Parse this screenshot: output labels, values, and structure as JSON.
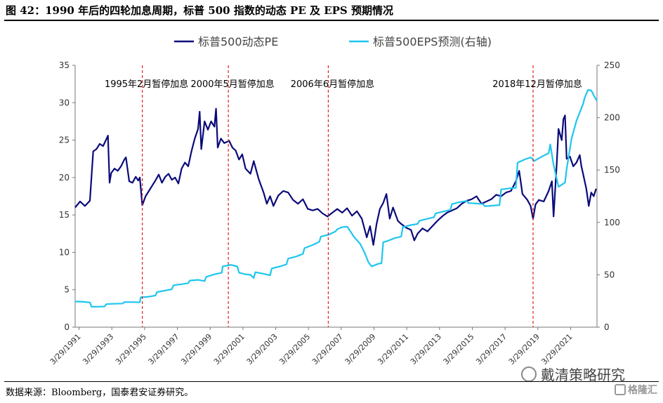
{
  "title": "图 42：1990 年后的四轮加息周期，标普 500 指数的动态 PE 及 EPS 预期情况",
  "source": "数据来源：Bloomberg，国泰君安证券研究。",
  "watermark": "戴清策略研究",
  "brand": "格隆汇",
  "colors": {
    "pe": "#0a0a7a",
    "eps": "#1ec6ee",
    "marker": "#e02020"
  },
  "chart_data": {
    "type": "line",
    "x_tick_labels": [
      "3/29/1991",
      "3/29/1993",
      "3/29/1995",
      "3/29/1997",
      "3/29/1999",
      "3/29/2001",
      "3/29/2003",
      "3/29/2005",
      "3/29/2007",
      "3/29/2009",
      "3/29/2011",
      "3/29/2013",
      "3/29/2015",
      "3/29/2017",
      "3/29/2019",
      "3/29/2021"
    ],
    "y_left": {
      "min": 0,
      "max": 35,
      "ticks": [
        0,
        5,
        10,
        15,
        20,
        25,
        30,
        35
      ]
    },
    "y_right": {
      "min": 0,
      "max": 250,
      "ticks": [
        0,
        50,
        100,
        150,
        200,
        250
      ]
    },
    "legend_position": "top",
    "series": [
      {
        "name": "标普500动态PE",
        "axis": "left",
        "points": [
          [
            1991.0,
            16
          ],
          [
            1991.3,
            16.8
          ],
          [
            1991.6,
            16.2
          ],
          [
            1991.9,
            16.9
          ],
          [
            1992.1,
            23.5
          ],
          [
            1992.3,
            23.8
          ],
          [
            1992.5,
            24.5
          ],
          [
            1992.7,
            24.2
          ],
          [
            1992.9,
            25.1
          ],
          [
            1993.0,
            25.6
          ],
          [
            1993.1,
            19.3
          ],
          [
            1993.2,
            20.6
          ],
          [
            1993.4,
            21.2
          ],
          [
            1993.6,
            20.9
          ],
          [
            1993.8,
            21.5
          ],
          [
            1994.0,
            22.4
          ],
          [
            1994.1,
            22.7
          ],
          [
            1994.3,
            19.5
          ],
          [
            1994.5,
            19.3
          ],
          [
            1994.7,
            20.1
          ],
          [
            1994.85,
            19.6
          ],
          [
            1994.95,
            20.0
          ],
          [
            1995.1,
            16.3
          ],
          [
            1995.3,
            17.5
          ],
          [
            1995.5,
            18.2
          ],
          [
            1995.7,
            18.9
          ],
          [
            1995.9,
            19.6
          ],
          [
            1996.1,
            20.4
          ],
          [
            1996.3,
            19.3
          ],
          [
            1996.5,
            20.1
          ],
          [
            1996.7,
            20.5
          ],
          [
            1996.9,
            19.7
          ],
          [
            1997.1,
            20.0
          ],
          [
            1997.3,
            19.2
          ],
          [
            1997.5,
            21.2
          ],
          [
            1997.7,
            22.0
          ],
          [
            1997.9,
            21.5
          ],
          [
            1998.1,
            23.5
          ],
          [
            1998.3,
            25.2
          ],
          [
            1998.5,
            26.5
          ],
          [
            1998.6,
            28.8
          ],
          [
            1998.7,
            23.8
          ],
          [
            1998.9,
            27.5
          ],
          [
            1999.1,
            26.4
          ],
          [
            1999.3,
            27.5
          ],
          [
            1999.5,
            26.8
          ],
          [
            1999.6,
            29.2
          ],
          [
            1999.7,
            24.0
          ],
          [
            1999.9,
            25.2
          ],
          [
            2000.1,
            24.6
          ],
          [
            2000.4,
            24.9
          ],
          [
            2000.6,
            24.0
          ],
          [
            2000.8,
            23.6
          ],
          [
            2001.0,
            22.4
          ],
          [
            2001.2,
            23.1
          ],
          [
            2001.4,
            21.2
          ],
          [
            2001.7,
            20.5
          ],
          [
            2001.9,
            22.2
          ],
          [
            2002.2,
            19.8
          ],
          [
            2002.5,
            18.0
          ],
          [
            2002.7,
            16.5
          ],
          [
            2002.9,
            17.5
          ],
          [
            2003.1,
            16.2
          ],
          [
            2003.4,
            17.6
          ],
          [
            2003.7,
            18.2
          ],
          [
            2004.0,
            18.0
          ],
          [
            2004.3,
            17.0
          ],
          [
            2004.6,
            16.5
          ],
          [
            2004.9,
            17.1
          ],
          [
            2005.2,
            15.8
          ],
          [
            2005.5,
            15.6
          ],
          [
            2005.8,
            15.8
          ],
          [
            2006.1,
            15.2
          ],
          [
            2006.4,
            14.8
          ],
          [
            2006.7,
            15.3
          ],
          [
            2007.0,
            15.8
          ],
          [
            2007.3,
            15.3
          ],
          [
            2007.6,
            15.9
          ],
          [
            2007.9,
            14.9
          ],
          [
            2008.2,
            15.5
          ],
          [
            2008.5,
            14.5
          ],
          [
            2008.8,
            12.0
          ],
          [
            2009.0,
            13.5
          ],
          [
            2009.2,
            11.0
          ],
          [
            2009.4,
            13.8
          ],
          [
            2009.6,
            15.8
          ],
          [
            2009.8,
            16.6
          ],
          [
            2010.0,
            17.8
          ],
          [
            2010.2,
            14.5
          ],
          [
            2010.4,
            16.0
          ],
          [
            2010.7,
            14.2
          ],
          [
            2010.9,
            13.8
          ],
          [
            2011.2,
            13.3
          ],
          [
            2011.5,
            13.0
          ],
          [
            2011.7,
            11.6
          ],
          [
            2011.9,
            12.5
          ],
          [
            2012.2,
            13.2
          ],
          [
            2012.5,
            12.8
          ],
          [
            2012.8,
            13.5
          ],
          [
            2013.1,
            14.2
          ],
          [
            2013.4,
            14.8
          ],
          [
            2013.7,
            15.3
          ],
          [
            2014.0,
            15.6
          ],
          [
            2014.3,
            15.9
          ],
          [
            2014.6,
            16.5
          ],
          [
            2014.9,
            16.9
          ],
          [
            2015.2,
            17.1
          ],
          [
            2015.5,
            17.5
          ],
          [
            2015.8,
            16.5
          ],
          [
            2016.1,
            16.8
          ],
          [
            2016.4,
            17.1
          ],
          [
            2016.7,
            17.7
          ],
          [
            2017.0,
            17.5
          ],
          [
            2017.3,
            18.0
          ],
          [
            2017.6,
            18.2
          ],
          [
            2017.9,
            19.5
          ],
          [
            2018.1,
            20.9
          ],
          [
            2018.3,
            17.8
          ],
          [
            2018.6,
            17.0
          ],
          [
            2018.8,
            16.2
          ],
          [
            2018.95,
            14.5
          ],
          [
            2019.1,
            16.4
          ],
          [
            2019.3,
            17.0
          ],
          [
            2019.6,
            16.8
          ],
          [
            2019.9,
            18.2
          ],
          [
            2020.1,
            19.5
          ],
          [
            2020.2,
            14.8
          ],
          [
            2020.4,
            22.0
          ],
          [
            2020.5,
            26.5
          ],
          [
            2020.7,
            25.0
          ],
          [
            2020.8,
            27.8
          ],
          [
            2020.9,
            28.3
          ],
          [
            2021.0,
            22.5
          ],
          [
            2021.2,
            22.8
          ],
          [
            2021.4,
            21.5
          ],
          [
            2021.6,
            22.0
          ],
          [
            2021.8,
            23.0
          ],
          [
            2021.9,
            21.5
          ],
          [
            2022.0,
            20.5
          ],
          [
            2022.2,
            18.5
          ],
          [
            2022.35,
            16.2
          ],
          [
            2022.5,
            18.0
          ],
          [
            2022.65,
            17.5
          ],
          [
            2022.8,
            18.5
          ]
        ]
      },
      {
        "name": "标普500EPS预测(右轴)",
        "axis": "right",
        "points": [
          [
            1991.0,
            24.5
          ],
          [
            1991.5,
            24.2
          ],
          [
            1991.9,
            23.6
          ],
          [
            1992.0,
            19.5
          ],
          [
            1992.5,
            19.6
          ],
          [
            1992.8,
            19.8
          ],
          [
            1992.9,
            22.0
          ],
          [
            1993.3,
            22.3
          ],
          [
            1993.9,
            22.6
          ],
          [
            1994.0,
            24.0
          ],
          [
            1994.5,
            23.9
          ],
          [
            1994.95,
            23.7
          ],
          [
            1995.0,
            28.5
          ],
          [
            1995.5,
            29.1
          ],
          [
            1995.9,
            30.2
          ],
          [
            1996.0,
            33.5
          ],
          [
            1996.5,
            35.0
          ],
          [
            1996.9,
            36.2
          ],
          [
            1997.0,
            40.0
          ],
          [
            1997.5,
            41.0
          ],
          [
            1997.9,
            42.0
          ],
          [
            1998.0,
            44.5
          ],
          [
            1998.5,
            45.2
          ],
          [
            1998.9,
            44.0
          ],
          [
            1999.0,
            48.0
          ],
          [
            1999.5,
            50.5
          ],
          [
            1999.95,
            52.0
          ],
          [
            2000.0,
            58.0
          ],
          [
            2000.5,
            59.5
          ],
          [
            2000.9,
            58.0
          ],
          [
            2001.0,
            52.0
          ],
          [
            2001.4,
            50.5
          ],
          [
            2001.7,
            50.0
          ],
          [
            2001.9,
            47.0
          ],
          [
            2002.0,
            52.5
          ],
          [
            2002.5,
            51.0
          ],
          [
            2002.9,
            49.5
          ],
          [
            2003.0,
            56.0
          ],
          [
            2003.5,
            58.0
          ],
          [
            2003.9,
            60.0
          ],
          [
            2004.0,
            65.5
          ],
          [
            2004.5,
            67.5
          ],
          [
            2004.9,
            70.0
          ],
          [
            2005.0,
            75.5
          ],
          [
            2005.5,
            78.5
          ],
          [
            2005.9,
            81.5
          ],
          [
            2006.0,
            86.5
          ],
          [
            2006.5,
            88.5
          ],
          [
            2006.9,
            91.5
          ],
          [
            2007.0,
            93.5
          ],
          [
            2007.3,
            95.5
          ],
          [
            2007.6,
            96.0
          ],
          [
            2007.8,
            91.5
          ],
          [
            2008.0,
            86.5
          ],
          [
            2008.4,
            79.5
          ],
          [
            2008.7,
            70.0
          ],
          [
            2008.9,
            62.0
          ],
          [
            2009.1,
            58.0
          ],
          [
            2009.5,
            60.5
          ],
          [
            2009.7,
            61.0
          ],
          [
            2009.8,
            81.0
          ],
          [
            2010.1,
            82.5
          ],
          [
            2010.5,
            85.0
          ],
          [
            2010.9,
            86.5
          ],
          [
            2011.0,
            95.5
          ],
          [
            2011.5,
            97.5
          ],
          [
            2011.9,
            98.5
          ],
          [
            2012.0,
            101.5
          ],
          [
            2012.5,
            103.5
          ],
          [
            2012.9,
            105.0
          ],
          [
            2013.0,
            108.5
          ],
          [
            2013.5,
            110.5
          ],
          [
            2013.9,
            112.0
          ],
          [
            2014.0,
            117.5
          ],
          [
            2014.5,
            119.5
          ],
          [
            2014.9,
            120.5
          ],
          [
            2015.0,
            118.5
          ],
          [
            2015.5,
            118.0
          ],
          [
            2015.9,
            117.5
          ],
          [
            2016.0,
            115.5
          ],
          [
            2016.5,
            116.0
          ],
          [
            2016.9,
            116.5
          ],
          [
            2017.0,
            131.5
          ],
          [
            2017.5,
            132.5
          ],
          [
            2017.9,
            133.0
          ],
          [
            2018.0,
            157.0
          ],
          [
            2018.5,
            160.5
          ],
          [
            2018.8,
            162.0
          ],
          [
            2018.9,
            161.0
          ],
          [
            2019.0,
            158.5
          ],
          [
            2019.5,
            163.0
          ],
          [
            2019.9,
            166.0
          ],
          [
            2020.0,
            174.5
          ],
          [
            2020.2,
            155.0
          ],
          [
            2020.5,
            134.0
          ],
          [
            2020.9,
            138.0
          ],
          [
            2021.0,
            151.0
          ],
          [
            2021.3,
            180.0
          ],
          [
            2021.6,
            197.0
          ],
          [
            2021.8,
            205.0
          ],
          [
            2022.0,
            213.0
          ],
          [
            2022.1,
            219.0
          ],
          [
            2022.3,
            226.5
          ],
          [
            2022.5,
            226.0
          ],
          [
            2022.7,
            220.0
          ],
          [
            2022.85,
            216.0
          ]
        ]
      }
    ],
    "annotations": [
      {
        "x": 1995.1,
        "label": "1995年2月暂停加息"
      },
      {
        "x": 2000.35,
        "label": "2000年5月暂停加息"
      },
      {
        "x": 2006.45,
        "label": "2006年6月暂停加息"
      },
      {
        "x": 2018.95,
        "label": "2018年12月暂停加息"
      }
    ]
  }
}
